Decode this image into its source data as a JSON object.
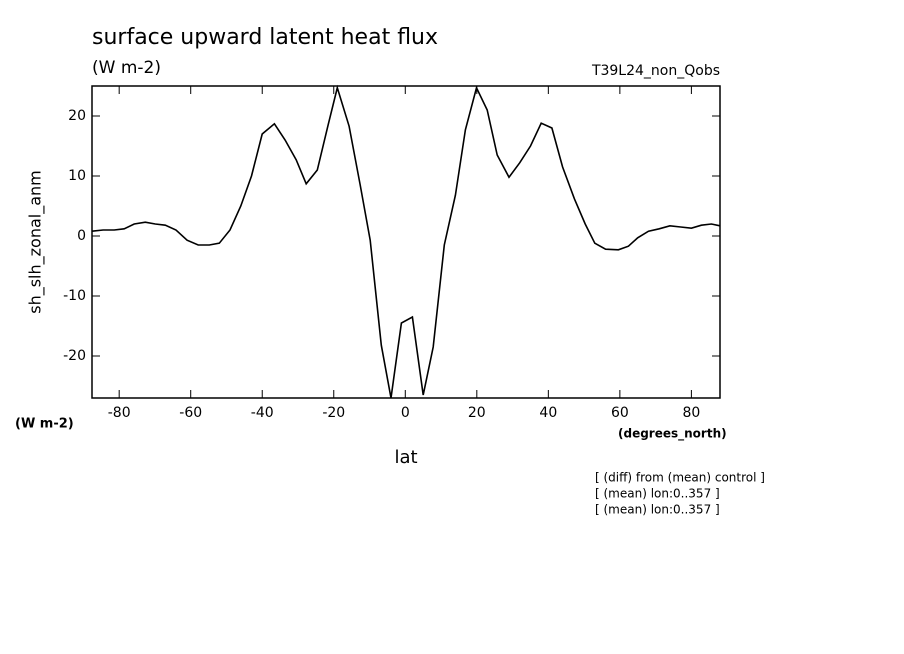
{
  "chart_data": {
    "type": "line",
    "title": "surface upward latent heat flux",
    "subtitle": "(W m-2)",
    "dataset_label": "T39L24_non_Qobs",
    "y_label": "sh_slh_zonal_anm",
    "y_units": "(W m-2)",
    "x_units": "(degrees_north)",
    "x_label": "lat",
    "annotations": [
      "[ (diff) from (mean) control ]",
      "[ (mean) lon:0..357 ]",
      "[ (mean) lon:0..357 ]"
    ],
    "color": "#000000",
    "x": [
      -87.6,
      -84.5,
      -81.4,
      -78.6,
      -75.8,
      -72.7,
      -69.9,
      -67.1,
      -64.1,
      -61.0,
      -57.9,
      -54.8,
      -52.0,
      -49.0,
      -46.0,
      -43.0,
      -40.0,
      -36.6,
      -33.6,
      -30.5,
      -27.7,
      -24.6,
      -21.5,
      -19.0,
      -15.7,
      -12.6,
      -9.8,
      -6.7,
      -4.0,
      -1.1,
      2.0,
      5.0,
      7.8,
      10.9,
      14.0,
      16.8,
      19.9,
      22.9,
      25.7,
      29.0,
      32.0,
      35.0,
      38.0,
      41.0,
      44.0,
      47.3,
      50.3,
      53.0,
      56.0,
      59.6,
      62.4,
      65.0,
      68.0,
      71.0,
      74.0,
      77.0,
      80.0,
      82.8,
      85.6,
      88.0
    ],
    "values": [
      0.8,
      1.0,
      1.0,
      1.2,
      2.0,
      2.3,
      2.0,
      1.8,
      1.0,
      -0.7,
      -1.5,
      -1.5,
      -1.2,
      1.0,
      5.0,
      10.0,
      17.0,
      18.7,
      16.0,
      12.7,
      8.7,
      11.0,
      18.7,
      24.7,
      18.3,
      8.5,
      -0.7,
      -18.2,
      -27.0,
      -14.5,
      -13.5,
      -26.5,
      -18.5,
      -1.5,
      6.8,
      17.7,
      24.7,
      21.0,
      13.5,
      9.8,
      12.2,
      15.0,
      18.8,
      18.0,
      11.5,
      6.2,
      2.0,
      -1.2,
      -2.2,
      -2.3,
      -1.7,
      -0.3,
      0.8,
      1.2,
      1.7,
      1.5,
      1.3,
      1.8,
      2.0,
      1.7
    ],
    "xlim": [
      -87.6,
      88.0
    ],
    "ylim": [
      -27,
      25
    ],
    "xticks": [
      -80,
      -60,
      -40,
      -20,
      0,
      20,
      40,
      60,
      80
    ],
    "yticks": [
      -20,
      -10,
      0,
      10,
      20
    ]
  }
}
